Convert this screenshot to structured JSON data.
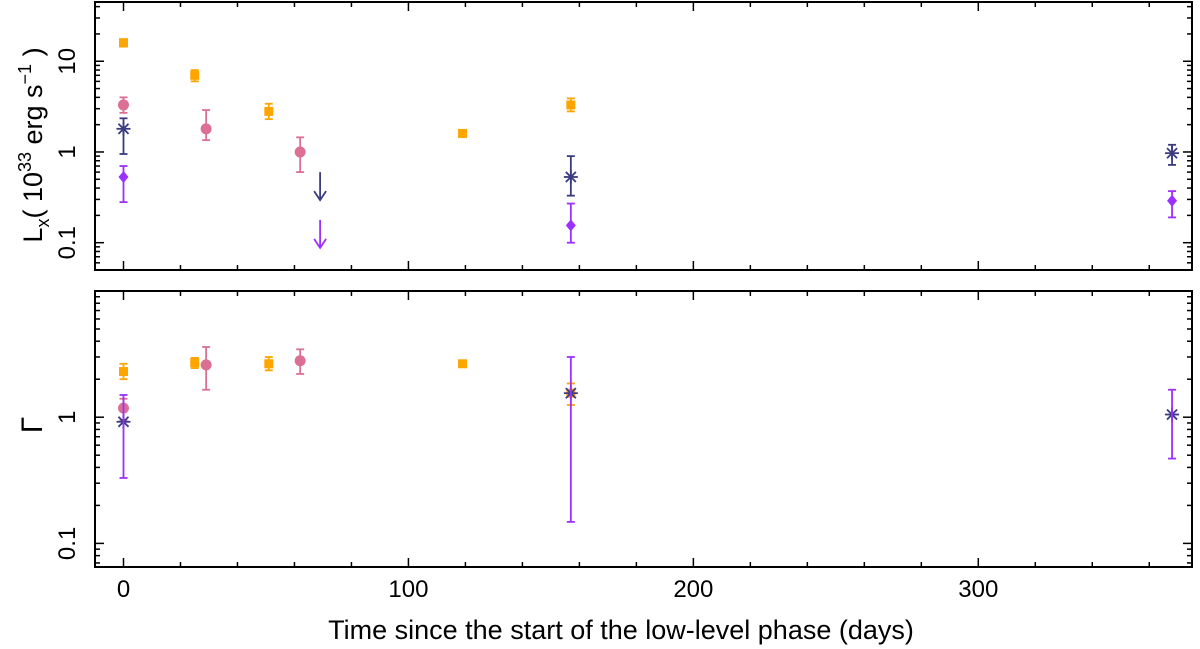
{
  "chart_data": [
    {
      "type": "scatter",
      "panel": "top",
      "yscale": "log",
      "ylim": [
        0.05,
        45
      ],
      "xlim": [
        -10,
        375
      ],
      "ylabel_main": "L",
      "ylabel_sub": "x",
      "ylabel_open": "( 10",
      "ylabel_exp": "33",
      "ylabel_mid": " erg s",
      "ylabel_exp2": "−1",
      "ylabel_close": " )",
      "yticks": [
        0.1,
        1,
        10
      ],
      "ytick_labels": [
        "0.1",
        "1",
        "10"
      ],
      "series": [
        {
          "name": "orange-squares",
          "marker": "square",
          "color": "#FFA500",
          "points": [
            {
              "x": 0,
              "y": 16,
              "lo": 14.5,
              "hi": 17.5
            },
            {
              "x": 25,
              "y": 7,
              "lo": 6,
              "hi": 8
            },
            {
              "x": 51,
              "y": 2.8,
              "lo": 2.3,
              "hi": 3.4
            },
            {
              "x": 119,
              "y": 1.6,
              "lo": 1.5,
              "hi": 1.7
            },
            {
              "x": 157,
              "y": 3.3,
              "lo": 2.8,
              "hi": 3.9
            }
          ]
        },
        {
          "name": "pink-circles",
          "marker": "circle",
          "color": "#DB7093",
          "points": [
            {
              "x": 0,
              "y": 3.3,
              "lo": 2.7,
              "hi": 4
            },
            {
              "x": 29,
              "y": 1.8,
              "lo": 1.35,
              "hi": 2.9
            },
            {
              "x": 62,
              "y": 1.0,
              "lo": 0.6,
              "hi": 1.45
            }
          ]
        },
        {
          "name": "navy-stars",
          "marker": "star",
          "color": "#3B3B80",
          "points": [
            {
              "x": 0,
              "y": 1.8,
              "lo": 0.95,
              "hi": 2.35
            },
            {
              "x": 157,
              "y": 0.53,
              "lo": 0.33,
              "hi": 0.9
            },
            {
              "x": 368,
              "y": 0.97,
              "lo": 0.72,
              "hi": 1.2
            }
          ],
          "upper_limits": [
            {
              "x": 69,
              "y": 0.42
            }
          ]
        },
        {
          "name": "violet-diamonds",
          "marker": "diamond",
          "color": "#9B30FF",
          "points": [
            {
              "x": 0,
              "y": 0.53,
              "lo": 0.28,
              "hi": 0.7
            },
            {
              "x": 157,
              "y": 0.155,
              "lo": 0.1,
              "hi": 0.27
            },
            {
              "x": 368,
              "y": 0.29,
              "lo": 0.19,
              "hi": 0.37
            }
          ],
          "upper_limits": [
            {
              "x": 69,
              "y": 0.125
            }
          ]
        }
      ]
    },
    {
      "type": "scatter",
      "panel": "bottom",
      "yscale": "log",
      "ylim": [
        0.065,
        10
      ],
      "xlim": [
        -10,
        375
      ],
      "ylabel": "Γ",
      "yticks": [
        0.1,
        1
      ],
      "ytick_labels": [
        "0.1",
        "1"
      ],
      "xticks": [
        0,
        100,
        200,
        300
      ],
      "xtick_labels": [
        "0",
        "100",
        "200",
        "300"
      ],
      "xlabel": "Time since the start of the low-level phase (days)",
      "series": [
        {
          "name": "orange-squares",
          "marker": "square",
          "color": "#FFA500",
          "points": [
            {
              "x": 0,
              "y": 2.3,
              "lo": 2.0,
              "hi": 2.65
            },
            {
              "x": 25,
              "y": 2.7,
              "lo": 2.45,
              "hi": 2.95
            },
            {
              "x": 51,
              "y": 2.65,
              "lo": 2.35,
              "hi": 3.0
            },
            {
              "x": 119,
              "y": 2.65,
              "lo": 2.55,
              "hi": 2.75
            },
            {
              "x": 157,
              "y": 1.55,
              "lo": 1.25,
              "hi": 1.85
            }
          ]
        },
        {
          "name": "pink-circles",
          "marker": "circle",
          "color": "#DB7093",
          "points": [
            {
              "x": 0,
              "y": 1.18,
              "lo": 0.95,
              "hi": 1.4
            },
            {
              "x": 29,
              "y": 2.6,
              "lo": 1.65,
              "hi": 3.6
            },
            {
              "x": 62,
              "y": 2.8,
              "lo": 2.2,
              "hi": 3.45
            }
          ]
        },
        {
          "name": "navy-stars",
          "marker": "star",
          "color": "#3B3B80",
          "points": [
            {
              "x": 0,
              "y": 0.92,
              "lo": 0.92,
              "hi": 0.92
            },
            {
              "x": 157,
              "y": 1.55,
              "lo": 1.55,
              "hi": 1.55
            },
            {
              "x": 368,
              "y": 1.05,
              "lo": 1.05,
              "hi": 1.05
            }
          ]
        },
        {
          "name": "violet-errors",
          "marker": "none",
          "color": "#9B30FF",
          "points": [
            {
              "x": 0,
              "y": 0.92,
              "lo": 0.33,
              "hi": 1.5
            },
            {
              "x": 157,
              "y": 1.55,
              "lo": 0.148,
              "hi": 3.0
            },
            {
              "x": 368,
              "y": 1.05,
              "lo": 0.47,
              "hi": 1.65
            }
          ]
        }
      ]
    }
  ]
}
